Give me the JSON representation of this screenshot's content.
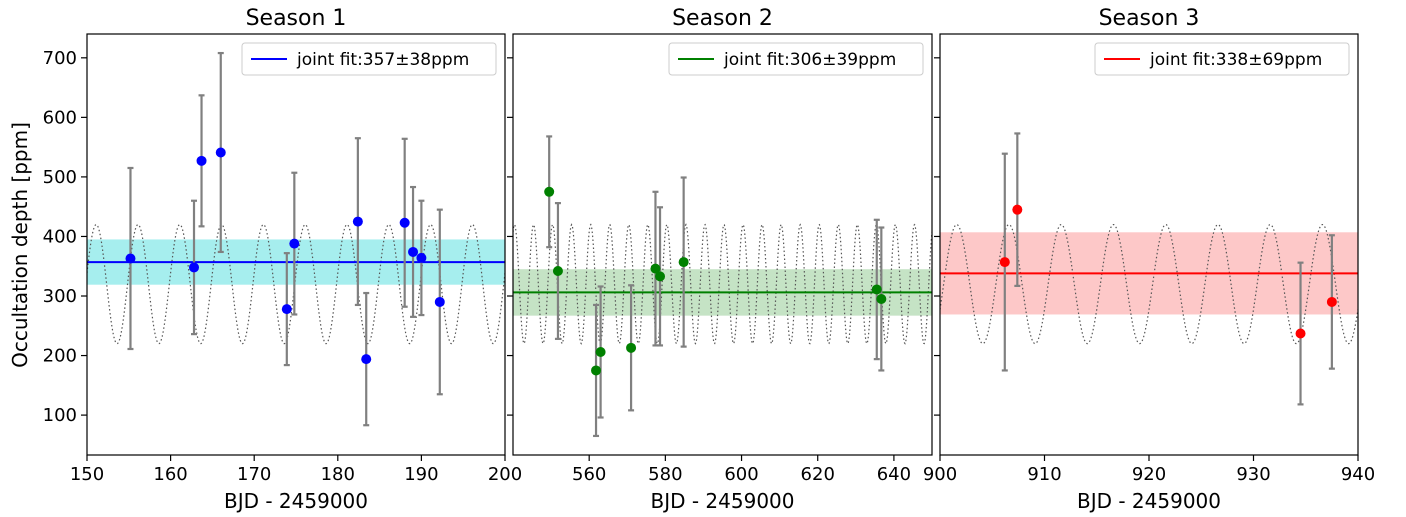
{
  "figure": {
    "ylabel": "Occultation depth [ppm]",
    "ylim": [
      33,
      740
    ],
    "yticks": [
      100,
      200,
      300,
      400,
      500,
      600,
      700
    ]
  },
  "chart_data": [
    {
      "type": "scatter",
      "title": "Season 1",
      "xlabel": "BJD - 2459000",
      "xlim": [
        150,
        200
      ],
      "xticks": [
        150,
        160,
        170,
        180,
        190,
        200
      ],
      "color": "#0000ff",
      "band_color": "#a6eeee",
      "fit": {
        "label": "joint fit:357±38ppm",
        "value": 357,
        "err": 38
      },
      "legend_position": "top-right",
      "model_curve": {
        "period": 5.0,
        "phase": 1.1,
        "mean": 320,
        "amplitude": 100
      },
      "points": [
        {
          "x": 155.2,
          "y": 363,
          "err": 152
        },
        {
          "x": 162.8,
          "y": 348,
          "err": 112
        },
        {
          "x": 163.7,
          "y": 527,
          "err": 110
        },
        {
          "x": 166.0,
          "y": 541,
          "err": 167
        },
        {
          "x": 173.9,
          "y": 278,
          "err": 94
        },
        {
          "x": 174.8,
          "y": 388,
          "err": 119
        },
        {
          "x": 182.4,
          "y": 425,
          "err": 140
        },
        {
          "x": 183.4,
          "y": 194,
          "err": 111
        },
        {
          "x": 188.0,
          "y": 423,
          "err": 141
        },
        {
          "x": 189.0,
          "y": 374,
          "err": 109
        },
        {
          "x": 190.0,
          "y": 364,
          "err": 96
        },
        {
          "x": 192.2,
          "y": 290,
          "err": 155
        }
      ]
    },
    {
      "type": "scatter",
      "title": "Season 2",
      "xlabel": "BJD - 2459000",
      "xlim": [
        540,
        650
      ],
      "xticks": [
        560,
        580,
        600,
        620,
        640
      ],
      "color": "#008000",
      "band_color": "#c5e3c5",
      "fit": {
        "label": "joint fit:306±39ppm",
        "value": 306,
        "err": 39
      },
      "legend_position": "top-right",
      "model_curve": {
        "period": 5.0,
        "phase": 0.4,
        "mean": 320,
        "amplitude": 100
      },
      "points": [
        {
          "x": 549.5,
          "y": 475,
          "err": 93
        },
        {
          "x": 551.8,
          "y": 342,
          "err": 114
        },
        {
          "x": 561.8,
          "y": 175,
          "err": 110
        },
        {
          "x": 563.0,
          "y": 206,
          "err": 110
        },
        {
          "x": 571.0,
          "y": 213,
          "err": 105
        },
        {
          "x": 577.4,
          "y": 346,
          "err": 129
        },
        {
          "x": 578.6,
          "y": 333,
          "err": 116
        },
        {
          "x": 584.8,
          "y": 357,
          "err": 142
        },
        {
          "x": 635.5,
          "y": 311,
          "err": 117
        },
        {
          "x": 636.7,
          "y": 295,
          "err": 120
        }
      ]
    },
    {
      "type": "scatter",
      "title": "Season 3",
      "xlabel": "BJD - 2459000",
      "xlim": [
        900,
        940
      ],
      "xticks": [
        900,
        910,
        920,
        930,
        940
      ],
      "color": "#ff0000",
      "band_color": "#fdc8c8",
      "fit": {
        "label": "joint fit:338±69ppm",
        "value": 338,
        "err": 69
      },
      "legend_position": "top-right",
      "model_curve": {
        "period": 5.0,
        "phase": 1.6,
        "mean": 320,
        "amplitude": 100
      },
      "points": [
        {
          "x": 906.2,
          "y": 357,
          "err": 182
        },
        {
          "x": 907.4,
          "y": 445,
          "err": 128
        },
        {
          "x": 934.5,
          "y": 237,
          "err": 119
        },
        {
          "x": 937.5,
          "y": 290,
          "err": 112
        }
      ]
    }
  ]
}
